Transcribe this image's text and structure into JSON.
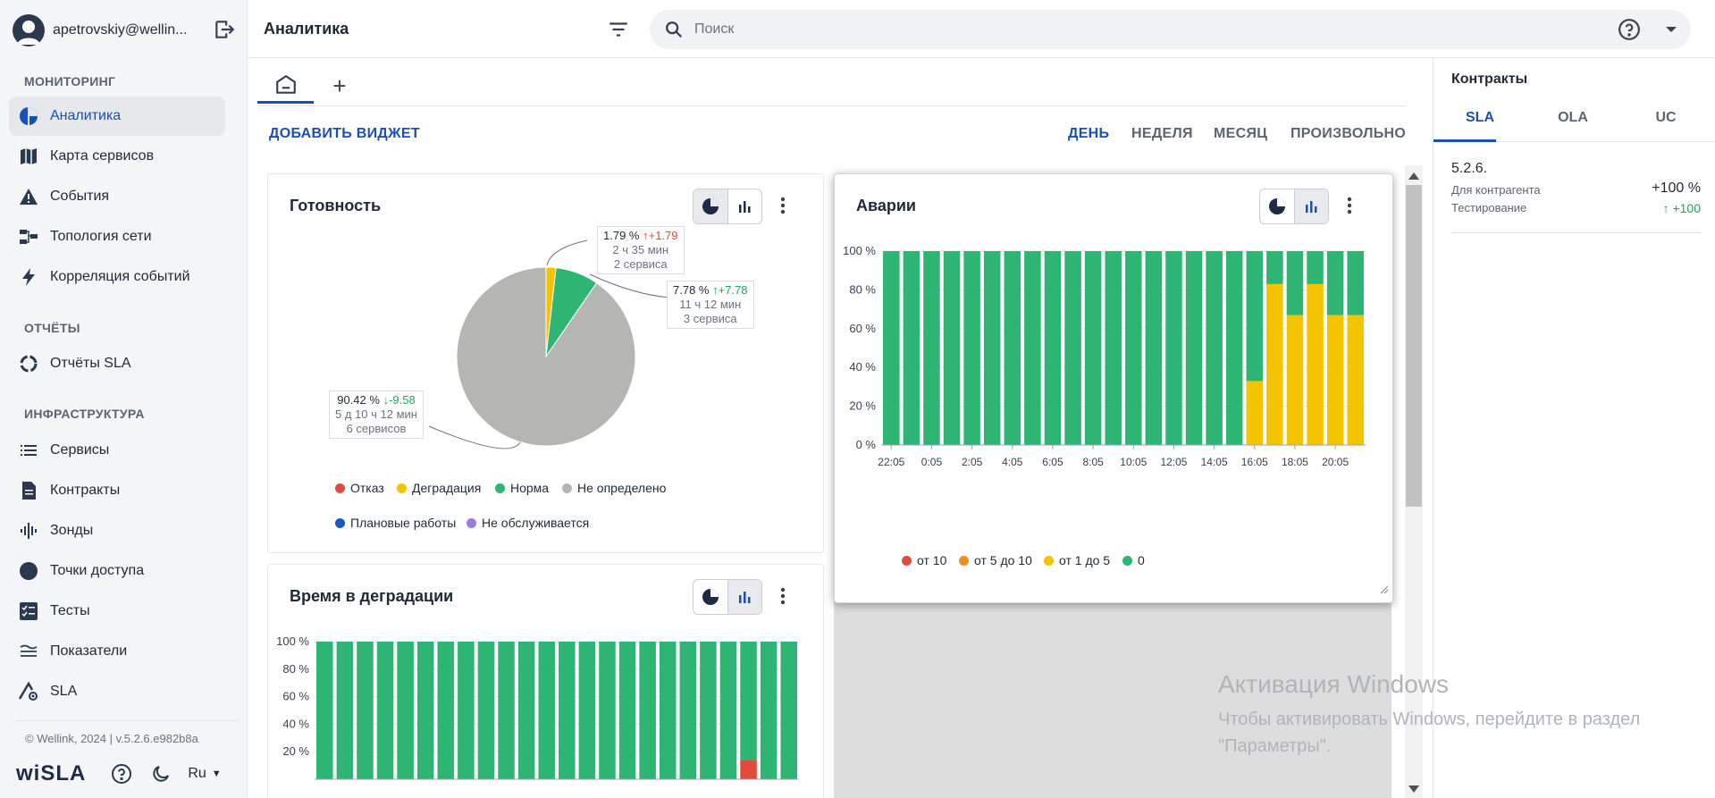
{
  "sidebar": {
    "user_email": "apetrovskiy@wellin...",
    "sections": {
      "monitoring": "МОНИТОРИНГ",
      "reports": "ОТЧЁТЫ",
      "infrastructure": "ИНФРАСТРУКТУРА"
    },
    "items": [
      {
        "label": "Аналитика",
        "icon": "pie-icon",
        "active": true
      },
      {
        "label": "Карта сервисов",
        "icon": "map-icon"
      },
      {
        "label": "События",
        "icon": "warning-icon"
      },
      {
        "label": "Топология сети",
        "icon": "topology-icon"
      },
      {
        "label": "Корреляция событий",
        "icon": "bolt-icon"
      },
      {
        "label": "Отчёты SLA",
        "icon": "ring-icon"
      },
      {
        "label": "Сервисы",
        "icon": "list-icon"
      },
      {
        "label": "Контракты",
        "icon": "document-icon"
      },
      {
        "label": "Зонды",
        "icon": "probe-icon"
      },
      {
        "label": "Точки доступа",
        "icon": "circle-icon"
      },
      {
        "label": "Тесты",
        "icon": "tests-icon"
      },
      {
        "label": "Показатели",
        "icon": "waves-icon"
      },
      {
        "label": "SLA",
        "icon": "sla-icon"
      }
    ],
    "footer": {
      "copyright": "© Wellink, 2024 | v.5.2.6.e982b8a",
      "logo": "wiSLA",
      "language": "Ru"
    }
  },
  "header": {
    "title": "Аналитика",
    "search_placeholder": "Поиск"
  },
  "toolbar": {
    "add_widget": "ДОБАВИТЬ ВИДЖЕТ",
    "periods": [
      "ДЕНЬ",
      "НЕДЕЛЯ",
      "МЕСЯЦ",
      "ПРОИЗВОЛЬНО"
    ],
    "active_period": "ДЕНЬ"
  },
  "widgets": {
    "readiness": {
      "title": "Готовность",
      "callouts": [
        {
          "pct": "1.79 %",
          "delta": "↑+1.79",
          "time": "2 ч 35 мин",
          "count": "2 сервиса"
        },
        {
          "pct": "7.78 %",
          "delta": "↑+7.78",
          "time": "11 ч 12 мин",
          "count": "3 сервиса"
        },
        {
          "pct": "90.42 %",
          "delta": "↓-9.58",
          "time": "5 д 10 ч 12 мин",
          "count": "6 сервисов"
        }
      ],
      "legend": [
        "Отказ",
        "Деградация",
        "Норма",
        "Не определено",
        "Плановые работы",
        "Не обслуживается"
      ]
    },
    "accidents": {
      "title": "Аварии",
      "legend": [
        "от 10",
        "от 5 до 10",
        "от 1 до 5",
        "0"
      ]
    },
    "degradation": {
      "title": "Время в деградации"
    }
  },
  "colors": {
    "fail": "#e04b3b",
    "degradation": "#f5c400",
    "norm": "#2fb573",
    "undefined": "#b5b5b3",
    "planned": "#1a56c4",
    "not_served": "#9b7be0",
    "orange": "#f28c1d",
    "accent": "#1a4fb5"
  },
  "chart_data": [
    {
      "type": "pie",
      "title": "Готовность",
      "slices": [
        {
          "name": "Деградация",
          "value": 1.79
        },
        {
          "name": "Норма",
          "value": 7.78
        },
        {
          "name": "Не определено",
          "value": 90.42
        }
      ]
    },
    {
      "type": "bar",
      "title": "Аварии",
      "stacked": true,
      "ylim": [
        0,
        100
      ],
      "yticks": [
        "0 %",
        "20 %",
        "40 %",
        "60 %",
        "80 %",
        "100 %"
      ],
      "xticks": [
        "22:05",
        "0:05",
        "2:05",
        "4:05",
        "6:05",
        "8:05",
        "10:05",
        "12:05",
        "14:05",
        "16:05",
        "18:05",
        "20:05"
      ],
      "bar_count": 24,
      "series": [
        {
          "name": "от 1 до 5",
          "values": [
            0,
            0,
            0,
            0,
            0,
            0,
            0,
            0,
            0,
            0,
            0,
            0,
            0,
            0,
            0,
            0,
            0,
            0,
            33,
            83,
            67,
            83,
            67,
            67
          ]
        },
        {
          "name": "0",
          "values": [
            100,
            100,
            100,
            100,
            100,
            100,
            100,
            100,
            100,
            100,
            100,
            100,
            100,
            100,
            100,
            100,
            100,
            100,
            67,
            17,
            33,
            17,
            33,
            33
          ]
        }
      ]
    },
    {
      "type": "bar",
      "title": "Время в деградации",
      "stacked": true,
      "ylim": [
        0,
        100
      ],
      "yticks": [
        "20 %",
        "40 %",
        "60 %",
        "80 %",
        "100 %"
      ],
      "bar_count": 24,
      "series": [
        {
          "name": "Отказ",
          "values": [
            0,
            0,
            0,
            0,
            0,
            0,
            0,
            0,
            0,
            0,
            0,
            0,
            0,
            0,
            0,
            0,
            0,
            0,
            0,
            0,
            0,
            14,
            0,
            0
          ]
        },
        {
          "name": "Норма",
          "values": [
            100,
            100,
            100,
            100,
            100,
            100,
            100,
            100,
            100,
            100,
            100,
            100,
            100,
            100,
            100,
            100,
            100,
            100,
            100,
            100,
            100,
            86,
            100,
            100
          ]
        }
      ]
    }
  ],
  "contracts": {
    "title": "Контракты",
    "tabs": [
      "SLA",
      "OLA",
      "UC"
    ],
    "version": "5.2.6.",
    "rows": [
      {
        "label": "Для контрагента",
        "value": "+100 %"
      },
      {
        "label": "Тестирование",
        "value": "↑ +100"
      }
    ]
  },
  "watermark": {
    "title": "Активация Windows",
    "text": "Чтобы активировать Windows, перейдите в раздел \"Параметры\"."
  }
}
